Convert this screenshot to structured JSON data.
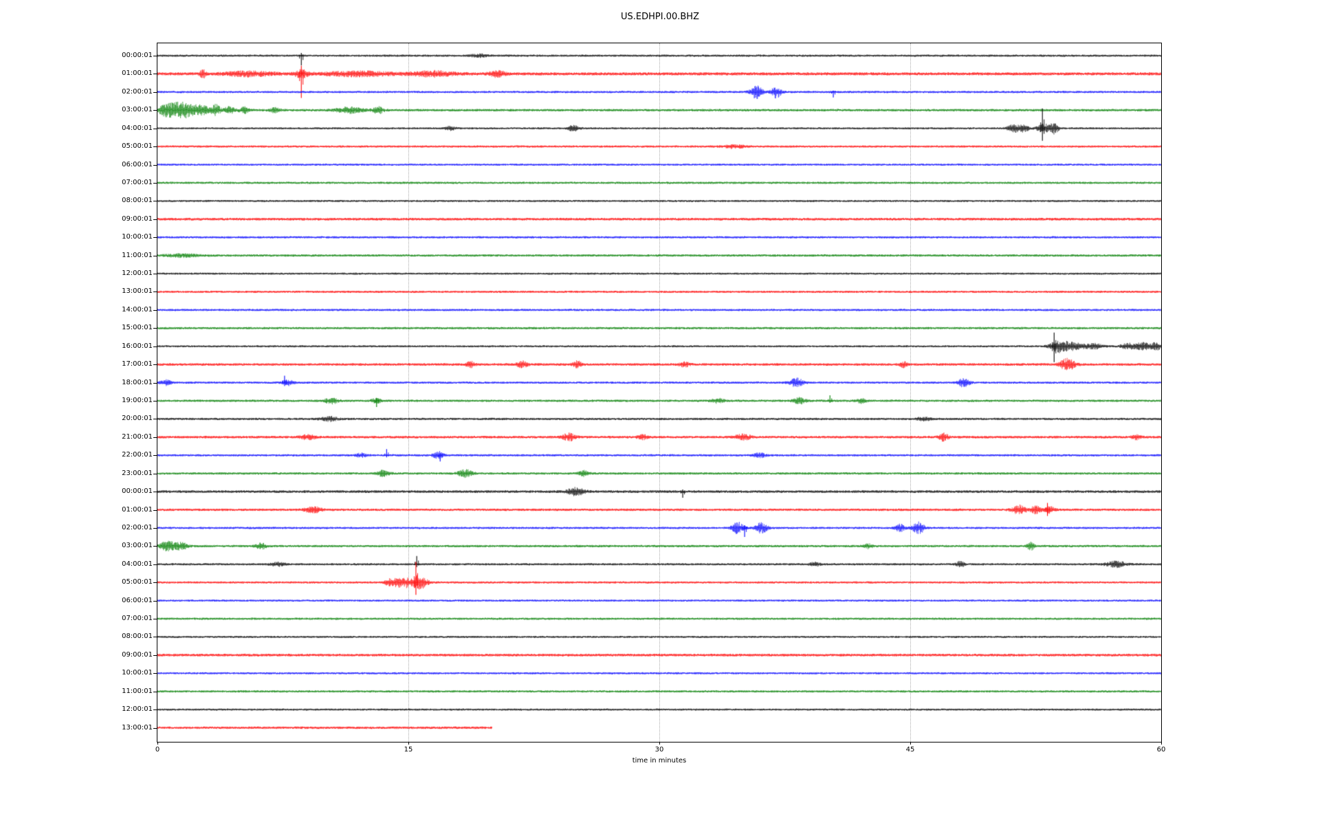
{
  "chart_data": {
    "type": "line",
    "subtype": "seismogram-dayplot",
    "title": "US.EDHPI.00.BHZ",
    "xlabel": "time in minutes",
    "x_ticks": [
      "0",
      "15",
      "30",
      "45",
      "60"
    ],
    "x_tick_values": [
      0,
      15,
      30,
      45,
      60
    ],
    "xlim": [
      0,
      60
    ],
    "grid": {
      "vertical_at_minutes": [
        15,
        30,
        45
      ],
      "style": "dotted",
      "color": "#aaaaaa"
    },
    "legend": "none",
    "palette": {
      "k": "#000000",
      "r": "#ff0000",
      "b": "#0000ff",
      "g": "#008000"
    },
    "rows": [
      {
        "label": "00:00:01",
        "c": "k",
        "noise": 1.6,
        "end": 60,
        "events": [
          {
            "t": 8.6,
            "s": [
              4,
              14
            ]
          },
          {
            "t": 19.2,
            "a": 2,
            "w": 0.5
          }
        ]
      },
      {
        "label": "01:00:01",
        "c": "r",
        "noise": 2.3,
        "end": 60,
        "events": [
          {
            "t": 2.7,
            "a": 7,
            "w": 0.15
          },
          {
            "t": 5.5,
            "a": 3,
            "w": 1.5
          },
          {
            "t": 8.6,
            "s": [
              12,
              35
            ]
          },
          {
            "t": 8.6,
            "a": 5,
            "w": 0.4
          },
          {
            "t": 12,
            "a": 3,
            "w": 2
          },
          {
            "t": 16.5,
            "a": 3.5,
            "w": 1.2
          },
          {
            "t": 20.3,
            "a": 4,
            "w": 0.5
          }
        ]
      },
      {
        "label": "02:00:01",
        "c": "b",
        "noise": 1.6,
        "end": 60,
        "events": [
          {
            "t": 35.8,
            "a": 9,
            "w": 0.35
          },
          {
            "t": 37.0,
            "a": 8,
            "w": 0.3
          },
          {
            "t": 40.4,
            "s": [
              2,
              8
            ]
          }
        ]
      },
      {
        "label": "03:00:01",
        "c": "g",
        "noise": 1.8,
        "end": 60,
        "events": [
          {
            "t": 0.6,
            "a": 9,
            "w": 0.5
          },
          {
            "t": 1.5,
            "a": 11,
            "w": 0.6
          },
          {
            "t": 2.6,
            "a": 7,
            "w": 0.5
          },
          {
            "t": 3.5,
            "a": 8,
            "w": 0.25
          },
          {
            "t": 4.3,
            "a": 5,
            "w": 0.3
          },
          {
            "t": 5.2,
            "a": 4,
            "w": 0.3
          },
          {
            "t": 7,
            "a": 3,
            "w": 0.3
          },
          {
            "t": 11.5,
            "a": 4,
            "w": 0.8
          },
          {
            "t": 13.2,
            "a": 5,
            "w": 0.3
          }
        ]
      },
      {
        "label": "04:00:01",
        "c": "k",
        "noise": 1.5,
        "end": 60,
        "events": [
          {
            "t": 17.5,
            "a": 2.5,
            "w": 0.3
          },
          {
            "t": 24.9,
            "a": 4,
            "w": 0.35
          },
          {
            "t": 51.2,
            "a": 5,
            "w": 0.4
          },
          {
            "t": 51.8,
            "a": 4,
            "w": 0.3
          },
          {
            "t": 52.9,
            "s": [
              29,
              18
            ]
          },
          {
            "t": 53.0,
            "a": 6,
            "w": 0.4
          },
          {
            "t": 53.6,
            "a": 7,
            "w": 0.25
          }
        ]
      },
      {
        "label": "05:00:01",
        "c": "r",
        "noise": 1.6,
        "end": 60,
        "events": [
          {
            "t": 34.5,
            "a": 2,
            "w": 0.8
          }
        ]
      },
      {
        "label": "06:00:01",
        "c": "b",
        "noise": 1.5,
        "end": 60,
        "events": []
      },
      {
        "label": "07:00:01",
        "c": "g",
        "noise": 1.6,
        "end": 60,
        "events": []
      },
      {
        "label": "08:00:01",
        "c": "k",
        "noise": 1.5,
        "end": 60,
        "events": []
      },
      {
        "label": "09:00:01",
        "c": "r",
        "noise": 2.0,
        "end": 60,
        "events": []
      },
      {
        "label": "10:00:01",
        "c": "b",
        "noise": 1.6,
        "end": 60,
        "events": []
      },
      {
        "label": "11:00:01",
        "c": "g",
        "noise": 1.7,
        "end": 60,
        "events": [
          {
            "t": 1.5,
            "a": 2,
            "w": 1
          }
        ]
      },
      {
        "label": "12:00:01",
        "c": "k",
        "noise": 1.5,
        "end": 60,
        "events": []
      },
      {
        "label": "13:00:01",
        "c": "r",
        "noise": 1.6,
        "end": 60,
        "events": []
      },
      {
        "label": "14:00:01",
        "c": "b",
        "noise": 1.6,
        "end": 60,
        "events": []
      },
      {
        "label": "15:00:01",
        "c": "g",
        "noise": 1.7,
        "end": 60,
        "events": []
      },
      {
        "label": "16:00:01",
        "c": "k",
        "noise": 1.5,
        "end": 60,
        "events": [
          {
            "t": 53.6,
            "s": [
              20,
              23
            ]
          },
          {
            "t": 53.9,
            "a": 8,
            "w": 0.5
          },
          {
            "t": 54.8,
            "a": 5,
            "w": 0.6
          },
          {
            "t": 56,
            "a": 3.5,
            "w": 0.5
          },
          {
            "t": 58,
            "a": 4,
            "w": 0.4
          },
          {
            "t": 58.9,
            "a": 5,
            "w": 0.45
          },
          {
            "t": 59.7,
            "a": 5,
            "w": 0.3
          }
        ]
      },
      {
        "label": "17:00:01",
        "c": "r",
        "noise": 1.9,
        "end": 60,
        "events": [
          {
            "t": 18.7,
            "a": 4,
            "w": 0.25
          },
          {
            "t": 21.8,
            "a": 4.5,
            "w": 0.3
          },
          {
            "t": 25.1,
            "a": 5,
            "w": 0.25
          },
          {
            "t": 31.5,
            "a": 3,
            "w": 0.3
          },
          {
            "t": 44.6,
            "a": 4,
            "w": 0.2
          },
          {
            "t": 54.4,
            "a": 8,
            "w": 0.45
          }
        ]
      },
      {
        "label": "18:00:01",
        "c": "b",
        "noise": 1.6,
        "end": 60,
        "events": [
          {
            "t": 0.5,
            "a": 4,
            "w": 0.3
          },
          {
            "t": 7.6,
            "s": [
              10,
              5
            ]
          },
          {
            "t": 7.8,
            "a": 4,
            "w": 0.3
          },
          {
            "t": 38.2,
            "a": 6,
            "w": 0.4
          },
          {
            "t": 48.2,
            "a": 6,
            "w": 0.35
          }
        ]
      },
      {
        "label": "19:00:01",
        "c": "g",
        "noise": 1.7,
        "end": 60,
        "events": [
          {
            "t": 10.4,
            "a": 4,
            "w": 0.4
          },
          {
            "t": 13.1,
            "s": [
              4,
              9
            ]
          },
          {
            "t": 13.1,
            "a": 3,
            "w": 0.3
          },
          {
            "t": 33.5,
            "a": 3,
            "w": 0.4
          },
          {
            "t": 38.4,
            "a": 4,
            "w": 0.4
          },
          {
            "t": 40.2,
            "s": [
              8,
              3
            ]
          },
          {
            "t": 42.1,
            "a": 3,
            "w": 0.3
          }
        ]
      },
      {
        "label": "20:00:01",
        "c": "k",
        "noise": 1.7,
        "end": 60,
        "events": [
          {
            "t": 10.3,
            "a": 3,
            "w": 0.5
          },
          {
            "t": 45.8,
            "a": 2.5,
            "w": 0.4
          }
        ]
      },
      {
        "label": "21:00:01",
        "c": "r",
        "noise": 1.9,
        "end": 60,
        "events": [
          {
            "t": 9,
            "a": 3,
            "w": 0.5
          },
          {
            "t": 24.6,
            "a": 5,
            "w": 0.4
          },
          {
            "t": 29,
            "a": 3,
            "w": 0.3
          },
          {
            "t": 35,
            "a": 4,
            "w": 0.45
          },
          {
            "t": 47,
            "a": 5,
            "w": 0.3
          },
          {
            "t": 58.5,
            "a": 3,
            "w": 0.3
          }
        ]
      },
      {
        "label": "22:00:01",
        "c": "b",
        "noise": 1.6,
        "end": 60,
        "events": [
          {
            "t": 12.2,
            "a": 3,
            "w": 0.3
          },
          {
            "t": 13.7,
            "s": [
              9,
              3
            ]
          },
          {
            "t": 16.8,
            "a": 5,
            "w": 0.3
          },
          {
            "t": 16.9,
            "s": [
              3,
              9
            ]
          },
          {
            "t": 36,
            "a": 3,
            "w": 0.4
          }
        ]
      },
      {
        "label": "23:00:01",
        "c": "g",
        "noise": 1.7,
        "end": 60,
        "events": [
          {
            "t": 13.5,
            "a": 4,
            "w": 0.35
          },
          {
            "t": 18.4,
            "a": 5,
            "w": 0.45
          },
          {
            "t": 25.5,
            "a": 4,
            "w": 0.3
          }
        ]
      },
      {
        "label": "00:00:01",
        "c": "k",
        "noise": 2.0,
        "end": 60,
        "events": [
          {
            "t": 25,
            "a": 5,
            "w": 0.5
          },
          {
            "t": 31.4,
            "s": [
              3,
              9
            ]
          }
        ]
      },
      {
        "label": "01:00:01",
        "c": "r",
        "noise": 1.8,
        "end": 60,
        "events": [
          {
            "t": 9.3,
            "a": 4,
            "w": 0.5
          },
          {
            "t": 51.5,
            "a": 6,
            "w": 0.4
          },
          {
            "t": 52.5,
            "a": 5,
            "w": 0.3
          },
          {
            "t": 53.2,
            "s": [
              10,
              9
            ]
          },
          {
            "t": 53.3,
            "a": 5,
            "w": 0.3
          }
        ]
      },
      {
        "label": "02:00:01",
        "c": "b",
        "noise": 1.6,
        "end": 60,
        "events": [
          {
            "t": 34.7,
            "a": 8,
            "w": 0.35
          },
          {
            "t": 35.1,
            "s": [
              4,
              13
            ]
          },
          {
            "t": 36.1,
            "a": 7,
            "w": 0.35
          },
          {
            "t": 44.4,
            "a": 5,
            "w": 0.3
          },
          {
            "t": 45.5,
            "a": 8,
            "w": 0.35
          }
        ]
      },
      {
        "label": "03:00:01",
        "c": "g",
        "noise": 1.7,
        "end": 60,
        "events": [
          {
            "t": 0.6,
            "a": 7,
            "w": 0.4
          },
          {
            "t": 1.4,
            "a": 5,
            "w": 0.4
          },
          {
            "t": 6.2,
            "a": 4,
            "w": 0.3
          },
          {
            "t": 42.5,
            "a": 3,
            "w": 0.3
          },
          {
            "t": 52.2,
            "a": 6,
            "w": 0.2
          }
        ]
      },
      {
        "label": "04:00:01",
        "c": "k",
        "noise": 1.6,
        "end": 60,
        "events": [
          {
            "t": 7.2,
            "a": 2.5,
            "w": 0.4
          },
          {
            "t": 15.5,
            "s": [
              12,
              4
            ]
          },
          {
            "t": 39.3,
            "a": 2.5,
            "w": 0.3
          },
          {
            "t": 48,
            "a": 4,
            "w": 0.25
          },
          {
            "t": 57.3,
            "a": 4,
            "w": 0.6
          }
        ]
      },
      {
        "label": "05:00:01",
        "c": "r",
        "noise": 1.6,
        "end": 60,
        "events": [
          {
            "t": 13.9,
            "a": 5,
            "w": 0.3
          },
          {
            "t": 14.4,
            "a": 6,
            "w": 0.25
          },
          {
            "t": 14.9,
            "a": 7,
            "w": 0.25
          },
          {
            "t": 15.45,
            "s": [
              30,
              18
            ]
          },
          {
            "t": 15.5,
            "a": 8,
            "w": 0.3
          },
          {
            "t": 15.9,
            "a": 6,
            "w": 0.3
          }
        ]
      },
      {
        "label": "06:00:01",
        "c": "b",
        "noise": 1.5,
        "end": 60,
        "events": []
      },
      {
        "label": "07:00:01",
        "c": "g",
        "noise": 1.6,
        "end": 60,
        "events": []
      },
      {
        "label": "08:00:01",
        "c": "k",
        "noise": 1.5,
        "end": 60,
        "events": []
      },
      {
        "label": "09:00:01",
        "c": "r",
        "noise": 2.0,
        "end": 60,
        "events": []
      },
      {
        "label": "10:00:01",
        "c": "b",
        "noise": 1.5,
        "end": 60,
        "events": []
      },
      {
        "label": "11:00:01",
        "c": "g",
        "noise": 1.6,
        "end": 60,
        "events": []
      },
      {
        "label": "12:00:01",
        "c": "k",
        "noise": 1.5,
        "end": 60,
        "events": []
      },
      {
        "label": "13:00:01",
        "c": "r",
        "noise": 1.8,
        "end": 20,
        "events": []
      }
    ]
  }
}
